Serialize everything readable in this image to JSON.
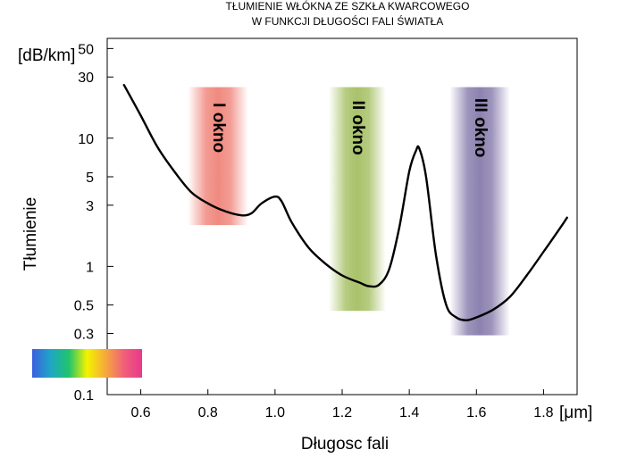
{
  "chart_data": {
    "type": "line",
    "title_lines": [
      "TŁUMIENIE WŁÓKNA ZE SZKŁA KWARCOWEGO",
      "W FUNKCJI DŁUGOŚCI FALI ŚWIATŁA"
    ],
    "xlabel": "Długosc fali",
    "ylabel": "Tłumienie",
    "x_unit": "[μm]",
    "y_unit": "[dB/km]",
    "xlim": [
      0.5,
      1.9
    ],
    "ylim": [
      0.1,
      60
    ],
    "yscale": "log",
    "x_ticks": [
      {
        "value": 0.6,
        "label": "0.6"
      },
      {
        "value": 0.8,
        "label": "0.8"
      },
      {
        "value": 1.0,
        "label": "1.0"
      },
      {
        "value": 1.2,
        "label": "1.2"
      },
      {
        "value": 1.4,
        "label": "1.4"
      },
      {
        "value": 1.6,
        "label": "1.6"
      },
      {
        "value": 1.8,
        "label": "1.8"
      }
    ],
    "y_ticks": [
      {
        "value": 50,
        "label": "50"
      },
      {
        "value": 30,
        "label": "30"
      },
      {
        "value": 10,
        "label": "10"
      },
      {
        "value": 5,
        "label": "5"
      },
      {
        "value": 3,
        "label": "3"
      },
      {
        "value": 1,
        "label": "1"
      },
      {
        "value": 0.5,
        "label": "0.5"
      },
      {
        "value": 0.3,
        "label": "0.3"
      },
      {
        "value": 0.1,
        "label": "0.1"
      }
    ],
    "series": [
      {
        "name": "tłumienie",
        "color": "#000000",
        "points": [
          [
            0.55,
            26
          ],
          [
            0.6,
            15
          ],
          [
            0.65,
            8.5
          ],
          [
            0.7,
            5.5
          ],
          [
            0.75,
            3.8
          ],
          [
            0.8,
            3.1
          ],
          [
            0.85,
            2.7
          ],
          [
            0.9,
            2.5
          ],
          [
            0.93,
            2.6
          ],
          [
            0.96,
            3.1
          ],
          [
            1.0,
            3.5
          ],
          [
            1.02,
            3.2
          ],
          [
            1.05,
            2.2
          ],
          [
            1.1,
            1.4
          ],
          [
            1.15,
            1.05
          ],
          [
            1.2,
            0.85
          ],
          [
            1.25,
            0.75
          ],
          [
            1.28,
            0.7
          ],
          [
            1.31,
            0.72
          ],
          [
            1.34,
            0.95
          ],
          [
            1.37,
            2.0
          ],
          [
            1.4,
            5.5
          ],
          [
            1.42,
            8.0
          ],
          [
            1.43,
            8.3
          ],
          [
            1.45,
            5.0
          ],
          [
            1.48,
            1.2
          ],
          [
            1.51,
            0.5
          ],
          [
            1.54,
            0.4
          ],
          [
            1.57,
            0.38
          ],
          [
            1.6,
            0.4
          ],
          [
            1.65,
            0.46
          ],
          [
            1.7,
            0.58
          ],
          [
            1.75,
            0.85
          ],
          [
            1.8,
            1.3
          ],
          [
            1.85,
            2.0
          ],
          [
            1.87,
            2.4
          ]
        ]
      }
    ],
    "bands": [
      {
        "label": "I okno",
        "x_range": [
          0.74,
          0.92
        ],
        "y_range": [
          2.1,
          25
        ],
        "color": "#f08a80"
      },
      {
        "label": "II okno",
        "x_range": [
          1.16,
          1.33
        ],
        "y_range": [
          0.45,
          25
        ],
        "color": "#a9c26a"
      },
      {
        "label": "III okno",
        "x_range": [
          1.52,
          1.7
        ],
        "y_range": [
          0.29,
          25
        ],
        "color": "#8c82b0"
      }
    ],
    "spectrum_bar": {
      "colors": [
        "#3b5fe0",
        "#1fa6c6",
        "#1fc46d",
        "#f4f200",
        "#f6a93b",
        "#f0607a",
        "#e8388c"
      ]
    }
  }
}
